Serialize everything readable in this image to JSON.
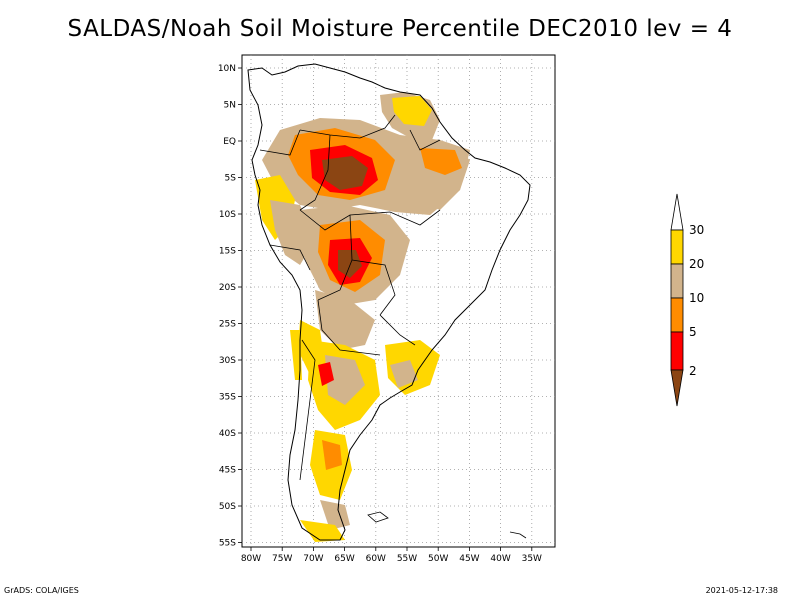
{
  "title": "SALDAS/Noah Soil Moisture Percentile DEC2010 lev = 4",
  "map": {
    "lat_labels": [
      "10N",
      "5N",
      "EQ",
      "5S",
      "10S",
      "15S",
      "20S",
      "25S",
      "30S",
      "35S",
      "40S",
      "45S",
      "50S",
      "55S"
    ],
    "lon_labels": [
      "80W",
      "75W",
      "70W",
      "65W",
      "60W",
      "55W",
      "50W",
      "45W",
      "40W",
      "35W"
    ],
    "gridlines": "dotted"
  },
  "colorbar": {
    "labels": [
      "2",
      "5",
      "10",
      "20",
      "30"
    ],
    "colors": {
      "lt2": "#8B4513",
      "c2_5": "#FF0000",
      "c5_10": "#FF8C00",
      "c10_20": "#D2B48C",
      "c20_30": "#FFD700",
      "gt30": "#FFFFFF"
    }
  },
  "footer": {
    "left": "GrADS: COLA/IGES",
    "right": "2021-05-12-17:38"
  }
}
